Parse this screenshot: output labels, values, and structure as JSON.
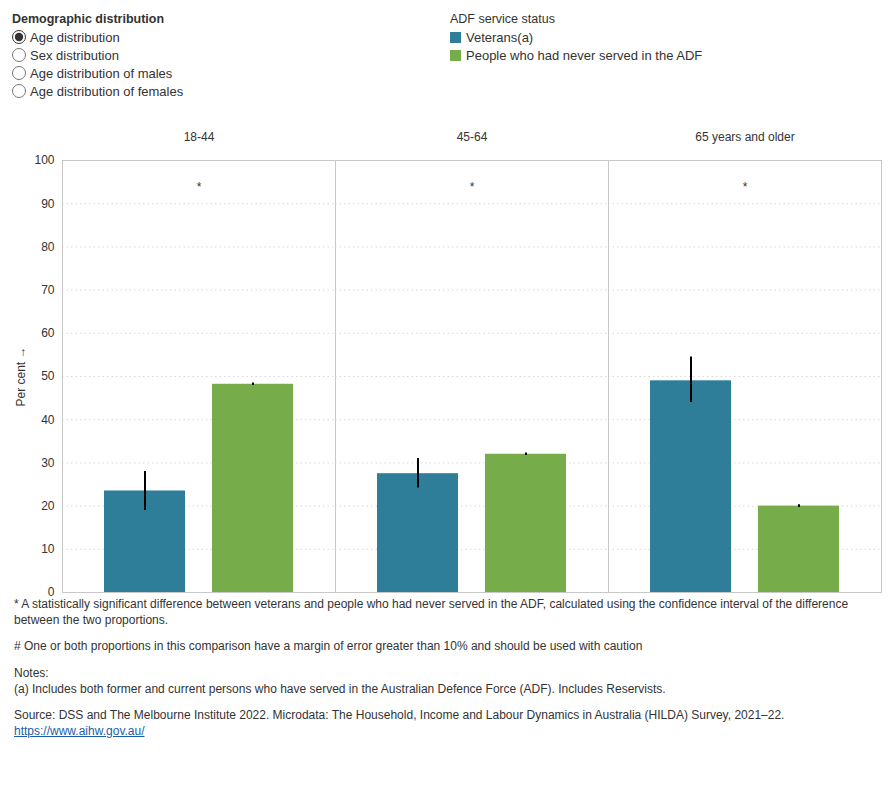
{
  "chart_data": {
    "type": "bar",
    "controls": {
      "title": "Demographic distribution",
      "options": [
        "Age distribution",
        "Sex distribution",
        "Age distribution of males",
        "Age distribution of females"
      ],
      "selected": 0
    },
    "legend_title": "ADF service status",
    "categories": [
      "18-44",
      "45-64",
      "65 years and older"
    ],
    "series": [
      {
        "name": "Veterans(a)",
        "color": "#2e7d99",
        "values": [
          23.5,
          27.5,
          49
        ],
        "error_low": [
          19,
          24.2,
          44
        ],
        "error_high": [
          28,
          31,
          54.5
        ]
      },
      {
        "name": "People who had never served in the ADF",
        "color": "#76ad4a",
        "values": [
          48.2,
          32,
          20
        ],
        "error_low": [
          47.9,
          31.7,
          19.7
        ],
        "error_high": [
          48.5,
          32.3,
          20.3
        ]
      }
    ],
    "significance_markers": [
      "*",
      "*",
      "*"
    ],
    "ylabel": "Per cent",
    "ylim": [
      0,
      100
    ],
    "yticks": [
      0,
      10,
      20,
      30,
      40,
      50,
      60,
      70,
      80,
      90,
      100
    ],
    "grid": true,
    "footnotes": [
      "* A statistically significant difference between veterans and people who had never served in the ADF, calculated using the confidence interval of the difference between the two proportions.",
      "# One or both proportions in this comparison have a margin of error greater than 10% and should be used with caution"
    ],
    "notes_title": "Notes:",
    "notes": [
      "(a) Includes both former and current persons who have served in the Australian Defence Force (ADF). Includes Reservists."
    ],
    "source": "Source: DSS and The Melbourne Institute 2022. Microdata: The Household, Income and Labour Dynamics in Australia (HILDA) Survey, 2021–22.",
    "source_url": "https://www.aihw.gov.au/"
  }
}
